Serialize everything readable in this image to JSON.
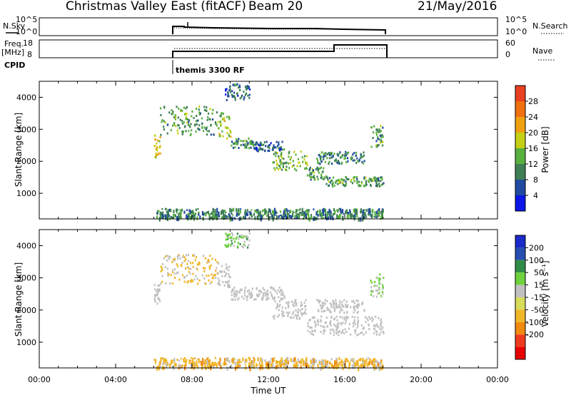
{
  "header": {
    "title": "Christmas Valley East (fitACF)",
    "beam": "Beam 20",
    "date": "21/May/2016"
  },
  "strip_labels": {
    "nsky": "N.Sky",
    "nsearch": "N.Search",
    "freq": "Freq.",
    "freq_unit": "[MHz]",
    "nave": "Nave",
    "cpid": "CPID",
    "cpid_name": "themis 3300 RF"
  },
  "noise_axis": {
    "left_ticks": [
      "10^5",
      "10^0"
    ],
    "right_ticks": [
      "10^5",
      "10^0"
    ]
  },
  "freq_axis": {
    "left_ticks": [
      "18",
      "8"
    ],
    "right_ticks": [
      "60",
      "0"
    ]
  },
  "x_ticks": [
    "00:00",
    "04:00",
    "08:00",
    "12:00",
    "16:00",
    "20:00",
    "00:00"
  ],
  "x_label": "Time UT",
  "colors": {
    "power": [
      "#0a17e6",
      "#214aa0",
      "#3f7f55",
      "#58b03f",
      "#c4cf15",
      "#f0a010",
      "#f07010",
      "#e84020",
      "#e80000"
    ],
    "velocity_neg": [
      "#e80000",
      "#f03c1e",
      "#f08a10",
      "#f0b628",
      "#d7dc5a"
    ],
    "velocity_zero": "#c0c0c0",
    "velocity_pos": [
      "#6ed23c",
      "#2f8c46",
      "#264db0",
      "#1a2ac8"
    ]
  },
  "chart_data": [
    {
      "type": "heatmap",
      "name": "power",
      "ylabel": "Slant Range [km]",
      "xlabel": "",
      "ylim": [
        200,
        4500
      ],
      "xlim_hours": [
        0,
        24
      ],
      "y_ticks": [
        1000,
        2000,
        3000,
        4000
      ],
      "colorbar": {
        "label": "Power [dB]",
        "ticks": [
          4,
          8,
          12,
          16,
          20,
          24,
          28
        ],
        "range": [
          0,
          32
        ]
      },
      "bands": [
        {
          "t": [
            6.0,
            6.3
          ],
          "r": [
            2100,
            2800
          ],
          "v": 20
        },
        {
          "t": [
            6.3,
            9.3
          ],
          "r": [
            2800,
            3700
          ],
          "v": 12
        },
        {
          "t": [
            9.3,
            10.0
          ],
          "r": [
            2700,
            3500
          ],
          "v": 16
        },
        {
          "t": [
            10.0,
            11.2
          ],
          "r": [
            2400,
            2700
          ],
          "v": 12
        },
        {
          "t": [
            11.2,
            12.8
          ],
          "r": [
            2300,
            2600
          ],
          "v": 8
        },
        {
          "t": [
            12.2,
            14.0
          ],
          "r": [
            1700,
            2300
          ],
          "v": 14
        },
        {
          "t": [
            14.0,
            15.0
          ],
          "r": [
            1400,
            1800
          ],
          "v": 12
        },
        {
          "t": [
            15.0,
            18.0
          ],
          "r": [
            1200,
            1500
          ],
          "v": 12
        },
        {
          "t": [
            14.5,
            17.0
          ],
          "r": [
            1900,
            2300
          ],
          "v": 10
        },
        {
          "t": [
            17.3,
            18.0
          ],
          "r": [
            2400,
            3100
          ],
          "v": 12
        },
        {
          "t": [
            9.7,
            11.0
          ],
          "r": [
            3900,
            4400
          ],
          "v": 8
        },
        {
          "t": [
            6.0,
            18.0
          ],
          "r": [
            200,
            500
          ],
          "v": 10
        }
      ]
    },
    {
      "type": "heatmap",
      "name": "velocity",
      "ylabel": "Slant Range [km]",
      "xlabel": "Time UT",
      "ylim": [
        200,
        4500
      ],
      "xlim_hours": [
        0,
        24
      ],
      "y_ticks": [
        1000,
        2000,
        3000,
        4000
      ],
      "colorbar": {
        "label": "Velocity [m s⁻¹]",
        "ticks": [
          200,
          100,
          50,
          15,
          -15,
          -50,
          -100,
          -200
        ]
      },
      "bands": [
        {
          "t": [
            6.0,
            6.3
          ],
          "r": [
            2100,
            2800
          ],
          "v": 0
        },
        {
          "t": [
            6.3,
            9.3
          ],
          "r": [
            2800,
            3700
          ],
          "v": -20
        },
        {
          "t": [
            9.3,
            10.0
          ],
          "r": [
            2700,
            3500
          ],
          "v": 0
        },
        {
          "t": [
            10.0,
            12.8
          ],
          "r": [
            2300,
            2700
          ],
          "v": 0
        },
        {
          "t": [
            12.2,
            14.0
          ],
          "r": [
            1700,
            2300
          ],
          "v": 0
        },
        {
          "t": [
            14.0,
            18.0
          ],
          "r": [
            1200,
            1800
          ],
          "v": 0
        },
        {
          "t": [
            14.5,
            17.0
          ],
          "r": [
            1900,
            2300
          ],
          "v": 0
        },
        {
          "t": [
            17.3,
            18.0
          ],
          "r": [
            2400,
            3100
          ],
          "v": 20
        },
        {
          "t": [
            9.7,
            11.0
          ],
          "r": [
            3900,
            4400
          ],
          "v": 30
        },
        {
          "t": [
            6.0,
            18.0
          ],
          "r": [
            200,
            500
          ],
          "v": -30
        }
      ]
    }
  ]
}
